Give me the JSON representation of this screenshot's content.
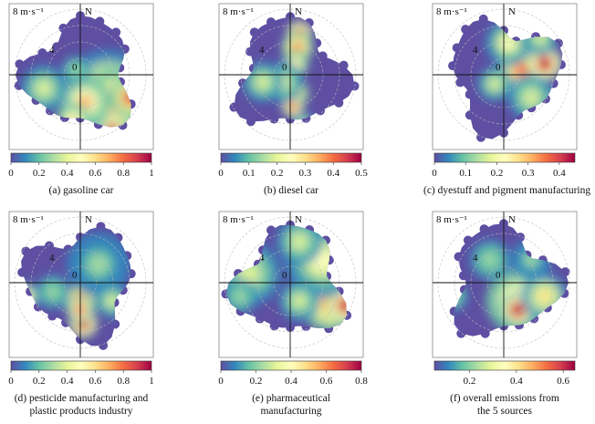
{
  "panels": [
    {
      "id": "a",
      "caption": "(a) gasoline car",
      "north_label": "N",
      "speed_label": "8 m·s⁻¹",
      "ring_labels": [
        "4",
        "0"
      ],
      "colorbar": {
        "ticks": [
          "0",
          "0.2",
          "0.4",
          "0.6",
          "0.8",
          "1"
        ],
        "min": 0,
        "max": 1
      },
      "hotspots_description": "high values south and south-east"
    },
    {
      "id": "b",
      "caption": "(b) diesel car",
      "north_label": "N",
      "speed_label": "8 m·s⁻¹",
      "ring_labels": [
        "4",
        "0"
      ],
      "colorbar": {
        "ticks": [
          "0",
          "0.1",
          "0.2",
          "0.3",
          "0.4",
          "0.5"
        ],
        "min": 0,
        "max": 0.5
      },
      "hotspots_description": "narrow north-south band"
    },
    {
      "id": "c",
      "caption": "(c) dyestuff and pigment manufacturing",
      "north_label": "N",
      "speed_label": "8 m·s⁻¹",
      "ring_labels": [
        "4",
        "0"
      ],
      "colorbar": {
        "ticks": [
          "0",
          "0.1",
          "0.2",
          "0.3",
          "0.4"
        ],
        "min": 0,
        "max": 0.45
      },
      "hotspots_description": "east-north-east band"
    },
    {
      "id": "d",
      "caption_lines": [
        "(d) pesticide manufacturing and",
        "plastic products industry"
      ],
      "north_label": "N",
      "speed_label": "8 m·s⁻¹",
      "ring_labels": [
        "4",
        "0"
      ],
      "colorbar": {
        "ticks": [
          "0",
          "0.2",
          "0.4",
          "0.6",
          "0.8",
          "1"
        ],
        "min": 0,
        "max": 1
      },
      "hotspots_description": "south band"
    },
    {
      "id": "e",
      "caption_lines": [
        "(e) pharmaceutical",
        "manufacturing"
      ],
      "north_label": "N",
      "speed_label": "8 m·s⁻¹",
      "ring_labels": [
        "4",
        "0"
      ],
      "colorbar": {
        "ticks": [
          "0",
          "0.2",
          "0.4",
          "0.6",
          "0.8"
        ],
        "min": 0,
        "max": 0.8
      },
      "hotspots_description": "south-east and east"
    },
    {
      "id": "f",
      "caption_lines": [
        "(f) overall emissions from",
        "the 5 sources"
      ],
      "north_label": "N",
      "speed_label": "8 m·s⁻¹",
      "ring_labels": [
        "4",
        "0"
      ],
      "colorbar": {
        "ticks": [
          "0.2",
          "0.4",
          "0.6"
        ],
        "min": 0.05,
        "max": 0.65
      },
      "hotspots_description": "south and south-east"
    }
  ],
  "chart_data": [
    {
      "type": "heatmap",
      "title": "(a) gasoline car",
      "polar": true,
      "radial_max": 8,
      "radial_unit": "m·s⁻¹",
      "color_range": [
        0,
        1
      ],
      "colormap": "spectral (blue→yellow→red)"
    },
    {
      "type": "heatmap",
      "title": "(b) diesel car",
      "polar": true,
      "radial_max": 8,
      "radial_unit": "m·s⁻¹",
      "color_range": [
        0,
        0.5
      ],
      "colormap": "spectral (blue→yellow→red)"
    },
    {
      "type": "heatmap",
      "title": "(c) dyestuff and pigment manufacturing",
      "polar": true,
      "radial_max": 8,
      "radial_unit": "m·s⁻¹",
      "color_range": [
        0,
        0.45
      ],
      "colormap": "spectral (blue→yellow→red)"
    },
    {
      "type": "heatmap",
      "title": "(d) pesticide manufacturing and plastic products industry",
      "polar": true,
      "radial_max": 8,
      "radial_unit": "m·s⁻¹",
      "color_range": [
        0,
        1
      ],
      "colormap": "spectral (blue→yellow→red)"
    },
    {
      "type": "heatmap",
      "title": "(e) pharmaceutical manufacturing",
      "polar": true,
      "radial_max": 8,
      "radial_unit": "m·s⁻¹",
      "color_range": [
        0,
        0.8
      ],
      "colormap": "spectral (blue→yellow→red)"
    },
    {
      "type": "heatmap",
      "title": "(f) overall emissions from the 5 sources",
      "polar": true,
      "radial_max": 8,
      "radial_unit": "m·s⁻¹",
      "color_range": [
        0.05,
        0.65
      ],
      "colormap": "spectral (blue→yellow→red)"
    }
  ],
  "colors": {
    "base": "#5e4fa2",
    "palette": [
      "#5e4fa2",
      "#3288bd",
      "#66c2a5",
      "#abdda4",
      "#e6f598",
      "#ffffbf",
      "#fee08b",
      "#fdae61",
      "#f46d43",
      "#d53e4f",
      "#9e0142"
    ]
  }
}
